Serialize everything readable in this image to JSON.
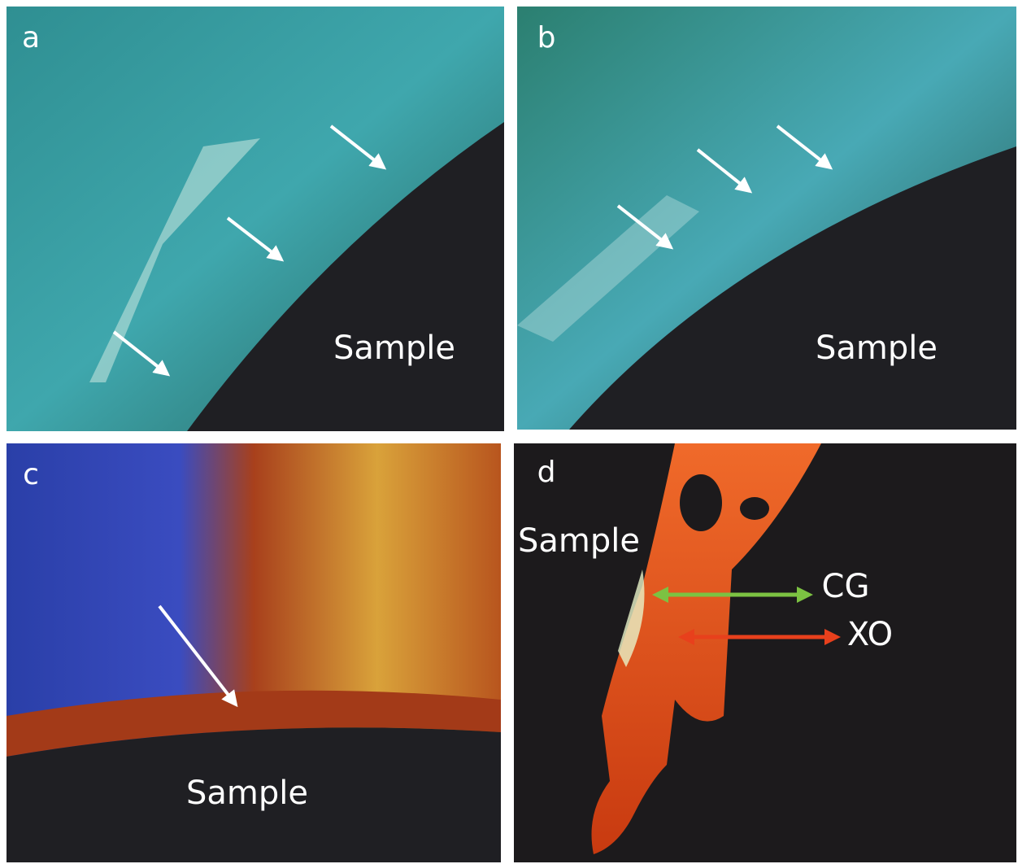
{
  "panels": [
    {
      "label": "a",
      "sample": "Sample"
    },
    {
      "label": "b",
      "sample": "Sample"
    },
    {
      "label": "c",
      "sample": "Sample"
    },
    {
      "label": "d",
      "sample": "Sample",
      "annotations": [
        "CG",
        "XO"
      ]
    }
  ]
}
